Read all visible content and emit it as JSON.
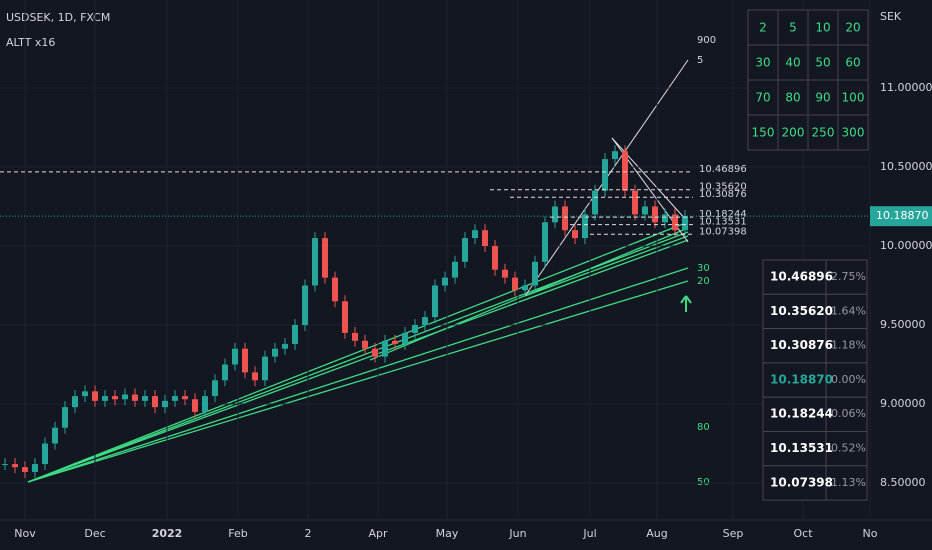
{
  "header": {
    "symbol": "USDSEK, 1D, FXCM",
    "indicator": "ALTT x16",
    "currency": "SEK"
  },
  "chart": {
    "closes": [
      8.62,
      8.6,
      8.57,
      8.62,
      8.75,
      8.85,
      8.98,
      9.05,
      9.08,
      9.02,
      9.05,
      9.03,
      9.06,
      9.02,
      9.05,
      8.98,
      9.02,
      9.05,
      9.03,
      8.95,
      9.05,
      9.15,
      9.25,
      9.35,
      9.2,
      9.15,
      9.3,
      9.35,
      9.38,
      9.5,
      9.75,
      10.05,
      9.8,
      9.65,
      9.45,
      9.4,
      9.35,
      9.3,
      9.4,
      9.38,
      9.45,
      9.5,
      9.55,
      9.75,
      9.8,
      9.9,
      10.05,
      10.1,
      10.0,
      9.85,
      9.8,
      9.72,
      9.75,
      9.9,
      10.15,
      10.25,
      10.1,
      10.05,
      10.2,
      10.35,
      10.55,
      10.6,
      10.35,
      10.2,
      10.25,
      10.15,
      10.2,
      10.1,
      10.19
    ],
    "price_ticks": [
      {
        "value": 11.0,
        "label": "11.00000"
      },
      {
        "value": 10.5,
        "label": "10.50000"
      },
      {
        "value": 10.0,
        "label": "10.00000"
      },
      {
        "value": 9.5,
        "label": "9.50000"
      },
      {
        "value": 9.0,
        "label": "9.00000"
      },
      {
        "value": 8.5,
        "label": "8.50000"
      }
    ],
    "current_price": {
      "value": 10.1887,
      "label": "10.18870"
    },
    "time_labels": [
      "Nov",
      "Dec",
      "2022",
      "Feb",
      "2",
      "Apr",
      "May",
      "Jun",
      "Jul",
      "Aug",
      "Sep",
      "Oct",
      "No"
    ],
    "markers": [
      "900",
      "5",
      "30",
      "20",
      "80",
      "50"
    ]
  },
  "levels": [
    {
      "price": {
        "value": 10.46896,
        "label": "10.46896"
      },
      "pct": "2.75%"
    },
    {
      "price": {
        "value": 10.3562,
        "label": "10.35620"
      },
      "pct": "1.64%"
    },
    {
      "price": {
        "value": 10.30876,
        "label": "10.30876"
      },
      "pct": "1.18%"
    },
    {
      "price": {
        "value": 10.1887,
        "label": "10.18870"
      },
      "pct": "0.00%"
    },
    {
      "price": {
        "value": 10.18244,
        "label": "10.18244"
      },
      "pct": "0.06%"
    },
    {
      "price": {
        "value": 10.13531,
        "label": "10.13531"
      },
      "pct": "0.52%"
    },
    {
      "price": {
        "value": 10.07398,
        "label": "10.07398"
      },
      "pct": "1.13%"
    }
  ],
  "period_grid": [
    [
      2,
      5,
      10,
      20
    ],
    [
      30,
      40,
      50,
      60
    ],
    [
      70,
      80,
      90,
      100
    ],
    [
      150,
      200,
      250,
      300
    ]
  ]
}
